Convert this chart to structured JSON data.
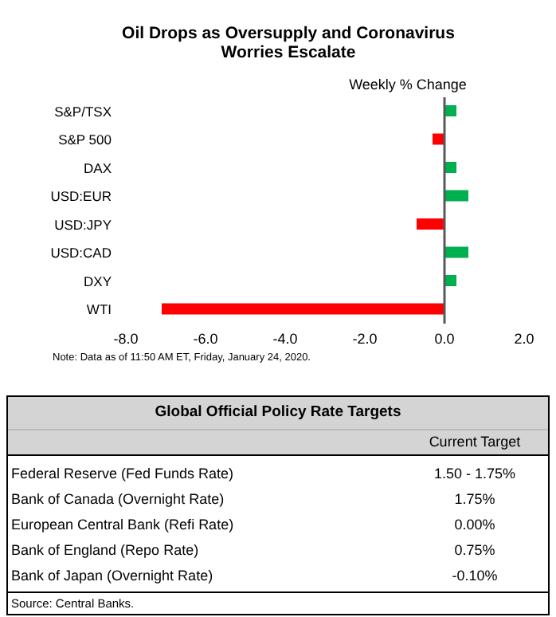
{
  "chart_data": [
    {
      "type": "bar",
      "orientation": "horizontal",
      "title": "Oil Drops as Oversupply and Coronavirus Worries Escalate",
      "xlabel": "Weekly % Change",
      "categories": [
        "S&P/TSX",
        "S&P 500",
        "DAX",
        "USD:EUR",
        "USD:JPY",
        "USD:CAD",
        "DXY",
        "WTI"
      ],
      "values": [
        0.3,
        -0.3,
        0.3,
        0.6,
        -0.7,
        0.6,
        0.3,
        -7.1
      ],
      "colors": [
        "#00b050",
        "#ff0000",
        "#00b050",
        "#00b050",
        "#ff0000",
        "#00b050",
        "#00b050",
        "#ff0000"
      ],
      "xlim": [
        -8,
        2
      ],
      "xticks": [
        {
          "value": -8,
          "label": "-8.0"
        },
        {
          "value": -6,
          "label": "-6.0"
        },
        {
          "value": -4,
          "label": "-4.0"
        },
        {
          "value": -2,
          "label": "-2.0"
        },
        {
          "value": 0,
          "label": "0.0"
        },
        {
          "value": 2,
          "label": "2.0"
        }
      ],
      "annotations": [
        "Note: Data as of 11:50 AM ET, Friday, January 24, 2020."
      ]
    },
    {
      "type": "other",
      "title": "Global Official Policy Rate Targets",
      "xlabel": "Current Target",
      "categories": [
        "Federal Reserve (Fed Funds Rate)",
        "Bank of Canada (Overnight Rate)",
        "European Central Bank (Refi Rate)",
        "Bank of England (Repo Rate)",
        "Bank of Japan (Overnight Rate)"
      ],
      "value_labels": [
        "1.50 - 1.75%",
        "1.75%",
        "0.00%",
        "0.75%",
        "-0.10%"
      ],
      "annotations": [
        "Source: Central Banks."
      ]
    }
  ]
}
